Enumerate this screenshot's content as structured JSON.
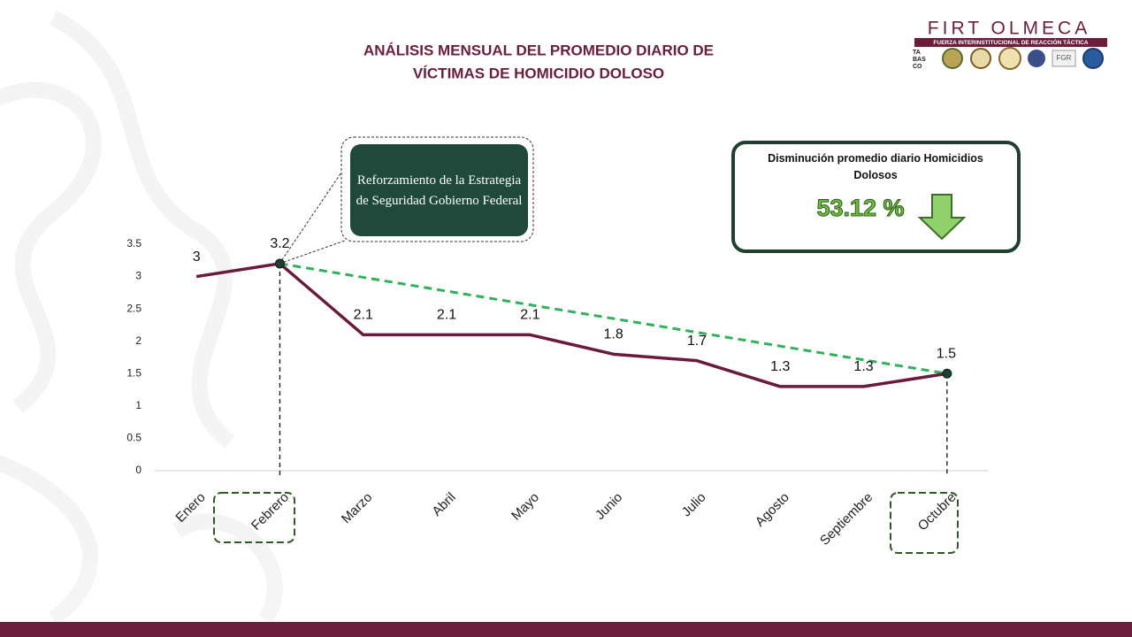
{
  "chart_data": {
    "type": "line",
    "title": [
      "ANÁLISIS MENSUAL DEL PROMEDIO DIARIO DE",
      "VÍCTIMAS DE HOMICIDIO DOLOSO"
    ],
    "categories": [
      "Enero",
      "Febrero",
      "Marzo",
      "Abril",
      "Mayo",
      "Junio",
      "Julio",
      "Agosto",
      "Septiembre",
      "Octubre"
    ],
    "values": [
      3,
      3.2,
      2.1,
      2.1,
      2.1,
      1.8,
      1.7,
      1.3,
      1.3,
      1.5
    ],
    "color": "#6a1b3b",
    "trend_color": "#2db35a",
    "ylim": [
      0,
      3.5
    ],
    "yticks": [
      0,
      0.5,
      1,
      1.5,
      2,
      2.5,
      3,
      3.5
    ],
    "grid": false,
    "annotation": "Reforzamiento de la Estrategia de Seguridad Gobierno Federal",
    "summary": {
      "label": "Disminución promedio diario Homicidios Dolosos",
      "value": "53.12 %"
    }
  },
  "logo": {
    "name": "FIRT OLMECA",
    "subtitle": "FUERZA INTERINSTITUCIONAL DE REACCIÓN TÁCTICA",
    "state": [
      "TA",
      "BAS",
      "CO"
    ],
    "agency": "FGR"
  }
}
